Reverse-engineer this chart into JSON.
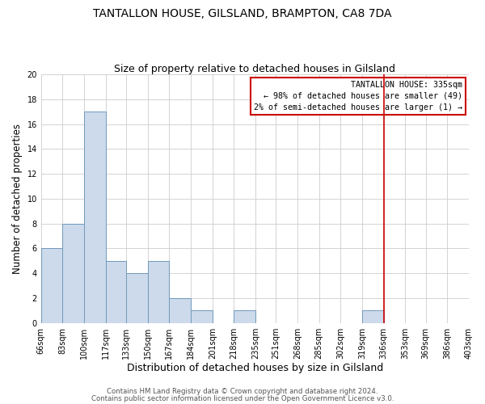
{
  "title": "TANTALLON HOUSE, GILSLAND, BRAMPTON, CA8 7DA",
  "subtitle": "Size of property relative to detached houses in Gilsland",
  "xlabel": "Distribution of detached houses by size in Gilsland",
  "ylabel": "Number of detached properties",
  "bin_edges": [
    66,
    83,
    100,
    117,
    133,
    150,
    167,
    184,
    201,
    218,
    235,
    251,
    268,
    285,
    302,
    319,
    336,
    353,
    369,
    386,
    403
  ],
  "bar_heights": [
    6,
    8,
    17,
    5,
    4,
    5,
    2,
    1,
    0,
    1,
    0,
    0,
    0,
    0,
    0,
    1,
    0,
    0,
    0,
    0
  ],
  "bar_color": "#ccdaeb",
  "bar_edgecolor": "#7099bb",
  "vline_x": 336,
  "vline_color": "#cc0000",
  "ylim": [
    0,
    20
  ],
  "yticks": [
    0,
    2,
    4,
    6,
    8,
    10,
    12,
    14,
    16,
    18,
    20
  ],
  "title_fontsize": 10,
  "subtitle_fontsize": 9,
  "xlabel_fontsize": 9,
  "ylabel_fontsize": 8.5,
  "tick_fontsize": 7,
  "annotation_title": "TANTALLON HOUSE: 335sqm",
  "annotation_line1": "← 98% of detached houses are smaller (49)",
  "annotation_line2": "2% of semi-detached houses are larger (1) →",
  "footer_line1": "Contains HM Land Registry data © Crown copyright and database right 2024.",
  "footer_line2": "Contains public sector information licensed under the Open Government Licence v3.0.",
  "background_color": "#ffffff",
  "grid_color": "#cccccc"
}
